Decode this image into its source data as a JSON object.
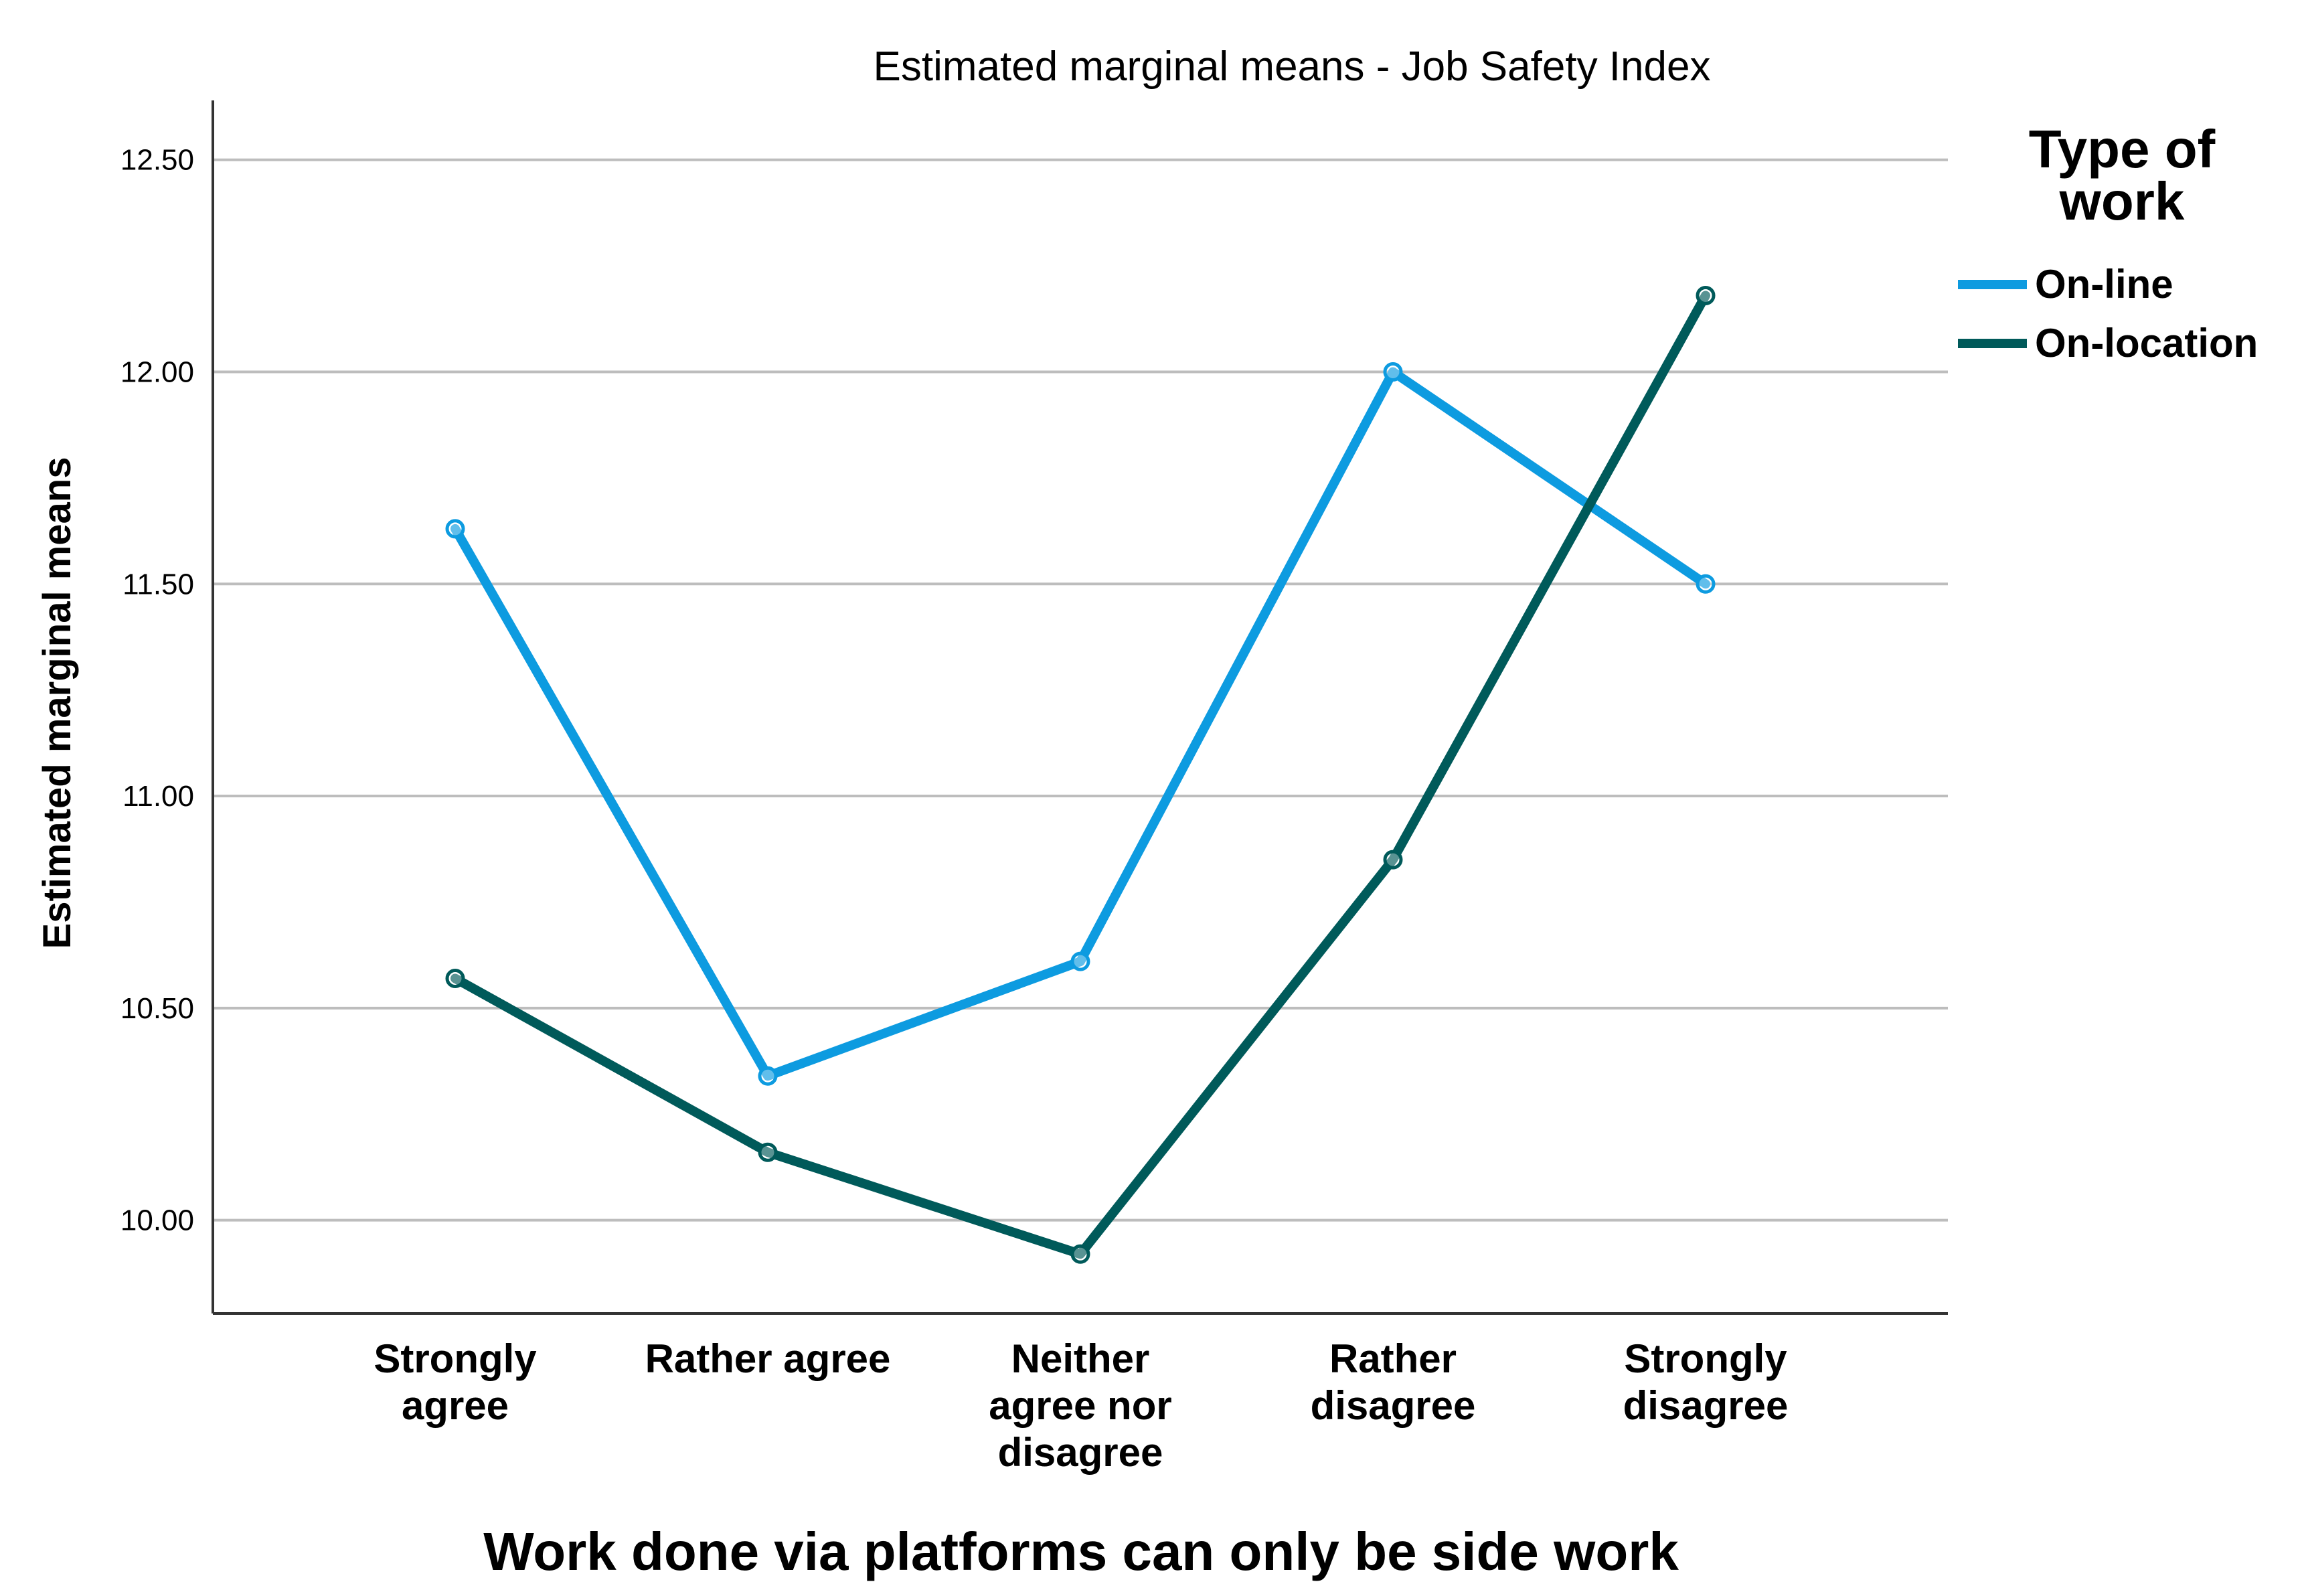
{
  "chart_data": {
    "type": "line",
    "title": "Estimated marginal means - Job Safety Index",
    "xlabel": "Work done via platforms can only be side work",
    "ylabel": "Estimated marginal means",
    "categories": [
      [
        "Strongly",
        "agree"
      ],
      [
        "Rather agree"
      ],
      [
        "Neither",
        "agree nor",
        "disagree"
      ],
      [
        "Rather",
        "disagree"
      ],
      [
        "Strongly",
        "disagree"
      ]
    ],
    "ylim": [
      9.78,
      12.64
    ],
    "yticks": [
      "10.00",
      "10.50",
      "11.00",
      "11.50",
      "12.00",
      "12.50"
    ],
    "grid": true,
    "legend": {
      "title": "Type of work",
      "title_lines": [
        "Type of",
        "work"
      ],
      "placement": "right"
    },
    "series": [
      {
        "name": "On-line",
        "color": "#0D9BE0",
        "values": [
          11.63,
          10.34,
          10.61,
          12.0,
          11.5
        ]
      },
      {
        "name": "On-location",
        "color": "#005A5A",
        "values": [
          10.57,
          10.16,
          9.92,
          10.85,
          12.18
        ]
      }
    ]
  }
}
